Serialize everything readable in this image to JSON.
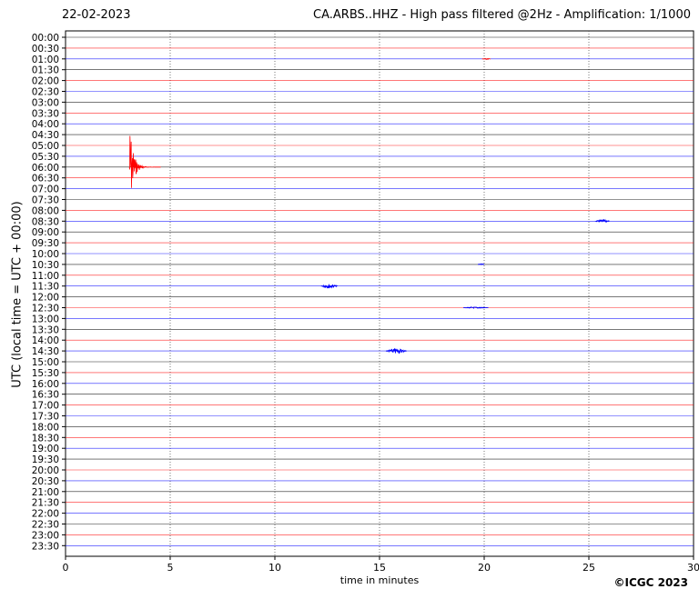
{
  "header": {
    "date": "22-02-2023",
    "title": "CA.ARBS..HHZ - High pass filtered @2Hz - Amplification: 1/1000"
  },
  "footer": {
    "copyright": "©ICGC 2023"
  },
  "chart_data": {
    "type": "line",
    "title": "CA.ARBS..HHZ - High pass filtered @2Hz - Amplification: 1/1000",
    "xlabel": "time in minutes",
    "ylabel": "UTC (local time = UTC + 00:00)",
    "xlim": [
      0,
      30
    ],
    "x_ticks": [
      "0",
      "5",
      "10",
      "15",
      "20",
      "25",
      "30"
    ],
    "y_tick_labels": [
      "00:00",
      "00:30",
      "01:00",
      "01:30",
      "02:00",
      "02:30",
      "03:00",
      "03:30",
      "04:00",
      "04:30",
      "05:00",
      "05:30",
      "06:00",
      "06:30",
      "07:00",
      "07:30",
      "08:00",
      "08:30",
      "09:00",
      "09:30",
      "10:00",
      "10:30",
      "11:00",
      "11:30",
      "12:00",
      "12:30",
      "13:00",
      "13:30",
      "14:00",
      "14:30",
      "15:00",
      "15:30",
      "16:00",
      "16:30",
      "17:00",
      "17:30",
      "18:00",
      "18:30",
      "19:00",
      "19:30",
      "20:00",
      "20:30",
      "21:00",
      "21:30",
      "22:00",
      "22:30",
      "23:00",
      "23:30"
    ],
    "trace_colors": [
      "#000000",
      "#ff0000",
      "#0000ff"
    ],
    "vertical_gridlines_at": [
      5,
      10,
      15,
      20,
      25
    ],
    "events": [
      {
        "row": "06:00",
        "minute": 3.05,
        "duration_min": 1.5,
        "amplitude_rows": 3.9,
        "color": "#ff0000",
        "type": "earthquake"
      },
      {
        "row": "08:30",
        "minute": 25.3,
        "duration_min": 0.7,
        "amplitude_rows": 0.12,
        "color": "#0000ff"
      },
      {
        "row": "11:30",
        "minute": 12.2,
        "duration_min": 0.8,
        "amplitude_rows": 0.2,
        "color": "#0000ff"
      },
      {
        "row": "14:30",
        "minute": 15.3,
        "duration_min": 1.0,
        "amplitude_rows": 0.22,
        "color": "#0000ff"
      },
      {
        "row": "01:00",
        "minute": 19.9,
        "duration_min": 0.4,
        "amplitude_rows": 0.05,
        "color": "#ff0000"
      },
      {
        "row": "10:30",
        "minute": 19.7,
        "duration_min": 0.3,
        "amplitude_rows": 0.08,
        "color": "#0000ff"
      },
      {
        "row": "12:30",
        "minute": 19.0,
        "duration_min": 1.2,
        "amplitude_rows": 0.06,
        "color": "#0000ff"
      }
    ],
    "grid": "vertical dotted",
    "legend": "none"
  }
}
